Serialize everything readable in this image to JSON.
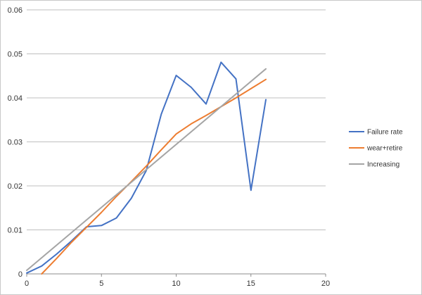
{
  "chart_data": {
    "type": "line",
    "title": "",
    "xlabel": "",
    "ylabel": "",
    "xlim": [
      0,
      20
    ],
    "ylim": [
      0,
      0.06
    ],
    "x_ticks": [
      "0",
      "5",
      "10",
      "15",
      "20"
    ],
    "y_ticks": [
      "0",
      "0.01",
      "0.02",
      "0.03",
      "0.04",
      "0.05",
      "0.06"
    ],
    "grid": "horizontal",
    "legend_position": "right",
    "series": [
      {
        "name": "Failure rate",
        "color": "#4472c4",
        "x": [
          0,
          1,
          2,
          3,
          4,
          5,
          6,
          7,
          8,
          9,
          10,
          11,
          12,
          13,
          14,
          15,
          16
        ],
        "y": [
          0.0002,
          0.0018,
          0.0045,
          0.0075,
          0.0107,
          0.011,
          0.0127,
          0.0172,
          0.0235,
          0.0363,
          0.0451,
          0.0424,
          0.0386,
          0.0481,
          0.0443,
          0.019,
          0.0396
        ]
      },
      {
        "name": "wear+retire",
        "color": "#ed7d31",
        "x": [
          1,
          2,
          3,
          4,
          5,
          6,
          7,
          8,
          9,
          10,
          11,
          12,
          13,
          14,
          15,
          16
        ],
        "y": [
          0.0,
          0.0035,
          0.0072,
          0.0106,
          0.014,
          0.0176,
          0.021,
          0.0245,
          0.0282,
          0.0318,
          0.0341,
          0.036,
          0.038,
          0.04,
          0.0421,
          0.0442
        ]
      },
      {
        "name": "Increasing",
        "color": "#a5a5a5",
        "x": [
          0,
          16
        ],
        "y": [
          0.0008,
          0.0466
        ]
      }
    ]
  }
}
